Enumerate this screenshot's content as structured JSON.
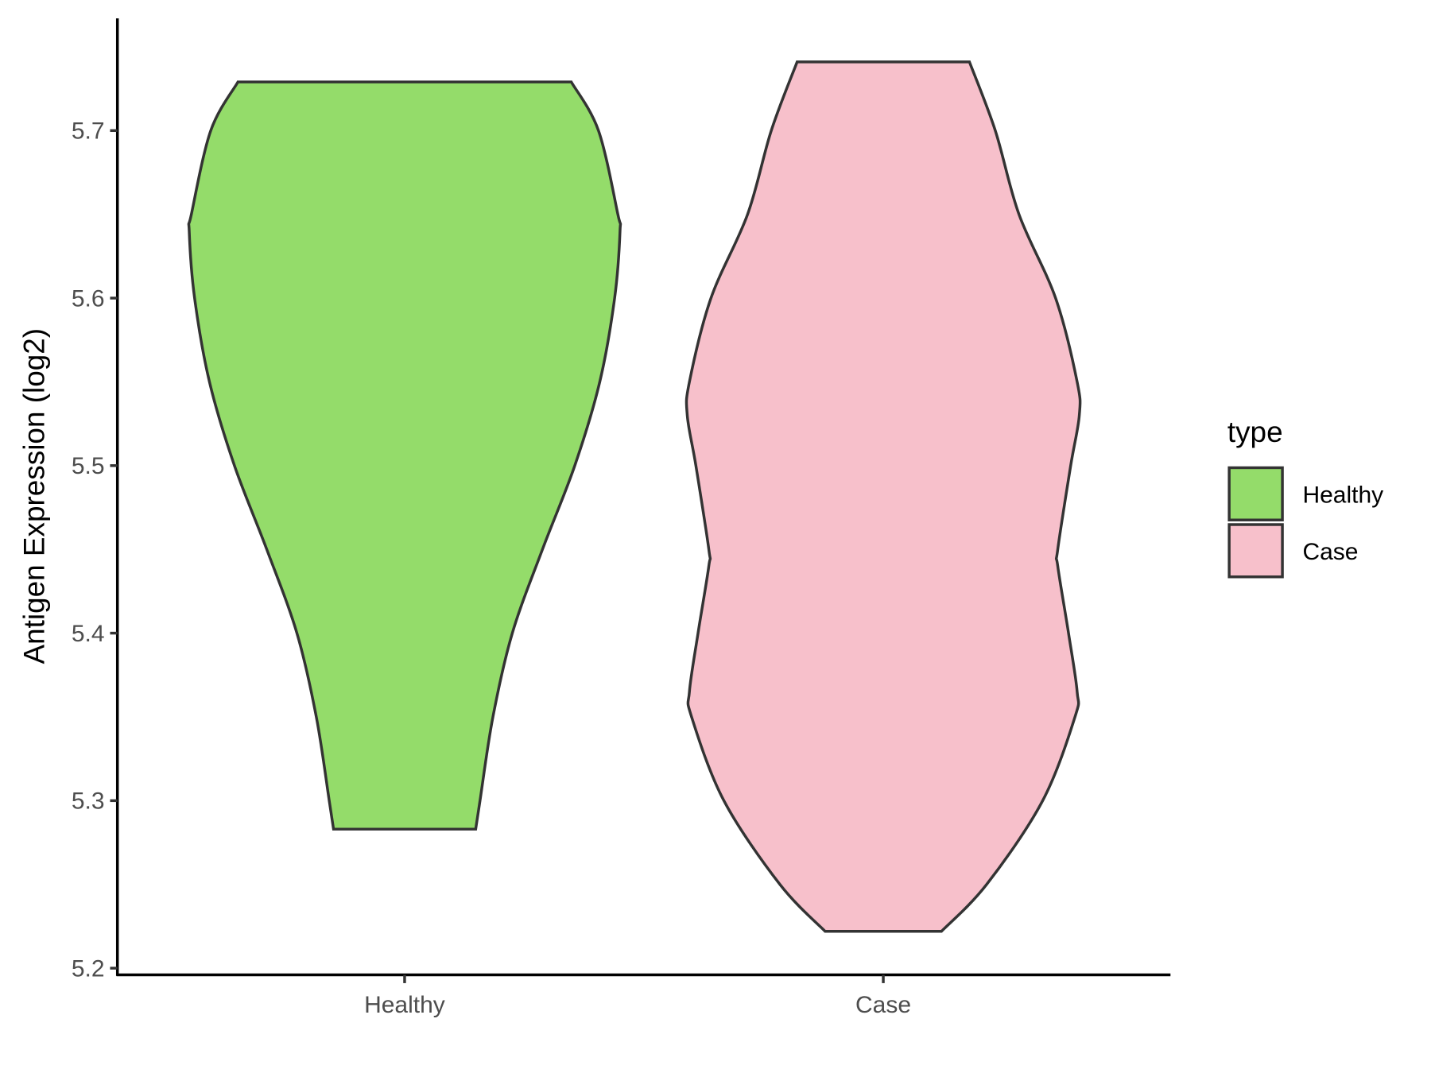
{
  "chart_data": {
    "type": "violin",
    "y_label": "Antigen Expression (log2)",
    "categories": [
      "Healthy",
      "Case"
    ],
    "legend_title": "type",
    "legend": "right",
    "ylim": [
      5.196,
      5.767
    ],
    "yticks": [
      5.2,
      5.3,
      5.4,
      5.5,
      5.6,
      5.7
    ],
    "series": [
      {
        "name": "Healthy",
        "color": "#94dc6a",
        "values": [
          5.283,
          5.3,
          5.35,
          5.4,
          5.45,
          5.5,
          5.55,
          5.6,
          5.64,
          5.65,
          5.7,
          5.729
        ],
        "widths": [
          0.33,
          0.35,
          0.41,
          0.5,
          0.64,
          0.79,
          0.906,
          0.975,
          1.0,
          0.99,
          0.9,
          0.774
        ]
      },
      {
        "name": "Case",
        "color": "#f7c0cb",
        "values": [
          5.222,
          5.25,
          5.3,
          5.35,
          5.365,
          5.4,
          5.44,
          5.45,
          5.5,
          5.53,
          5.55,
          5.6,
          5.65,
          5.7,
          5.741
        ],
        "widths": [
          0.27,
          0.48,
          0.74,
          0.89,
          0.9,
          0.86,
          0.81,
          0.81,
          0.87,
          0.91,
          0.9,
          0.8,
          0.63,
          0.52,
          0.4
        ]
      }
    ]
  }
}
